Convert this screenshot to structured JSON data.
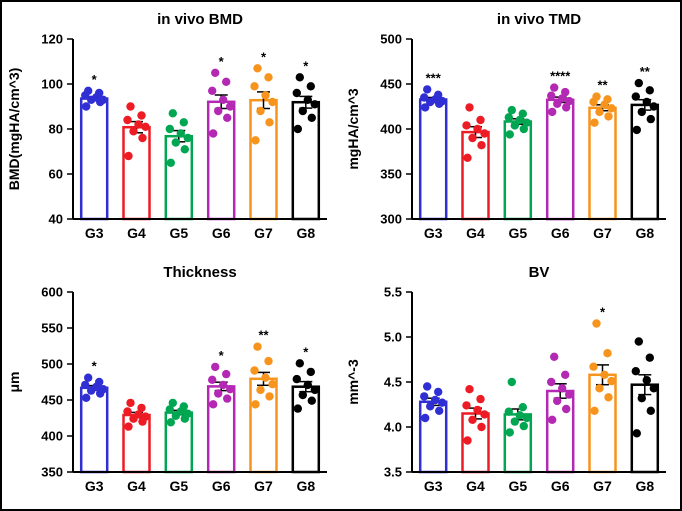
{
  "figure": {
    "background": "#ffffff",
    "border_color": "#000000"
  },
  "group_labels": [
    "G3",
    "G4",
    "G5",
    "G6",
    "G7",
    "G8"
  ],
  "group_colors": [
    "#2f2fd3",
    "#ed1c24",
    "#00a651",
    "#b429b4",
    "#f7941d",
    "#000000"
  ],
  "chart_data": [
    {
      "type": "bar",
      "title": "in vivo BMD",
      "ylabel": "BMD(mgHA/cm^3)",
      "ylim": [
        40,
        120
      ],
      "yticks": [
        40,
        60,
        80,
        100,
        120
      ],
      "ytick_labels": [
        "40",
        "60",
        "80",
        "100",
        "120"
      ],
      "categories": [
        "G3",
        "G4",
        "G5",
        "G6",
        "G7",
        "G8"
      ],
      "means": [
        93.5,
        80.8,
        76.8,
        92.1,
        92.8,
        91.9
      ],
      "sems": [
        0.8,
        2.5,
        2.5,
        3.0,
        3.7,
        2.6
      ],
      "significance": [
        "*",
        "",
        "",
        "*",
        "*",
        "*"
      ],
      "points": [
        [
          90,
          92,
          93,
          93,
          94,
          95,
          96,
          97
        ],
        [
          68,
          76,
          79,
          81,
          82,
          84,
          86,
          90
        ],
        [
          65,
          71,
          74,
          76,
          78,
          80,
          83,
          87
        ],
        [
          78,
          85,
          88,
          90,
          93,
          97,
          101,
          105
        ],
        [
          75,
          83,
          88,
          92,
          95,
          99,
          103,
          107
        ],
        [
          80,
          85,
          88,
          91,
          93,
          96,
          99,
          103
        ]
      ]
    },
    {
      "type": "bar",
      "title": "in vivo TMD",
      "ylabel": "mgHA/cm^3",
      "ylim": [
        300,
        500
      ],
      "yticks": [
        300,
        350,
        400,
        450,
        500
      ],
      "ytick_labels": [
        "300",
        "350",
        "400",
        "450",
        "500"
      ],
      "categories": [
        "G3",
        "G4",
        "G5",
        "G6",
        "G7",
        "G8"
      ],
      "means": [
        432.8,
        396.6,
        408.3,
        432.5,
        423.6,
        426.8
      ],
      "sems": [
        2.2,
        6.0,
        3.0,
        3.0,
        3.3,
        5.8
      ],
      "significance": [
        "***",
        "",
        "",
        "****",
        "**",
        "**"
      ],
      "points": [
        [
          424,
          428,
          430,
          431,
          433,
          435,
          438,
          444
        ],
        [
          368,
          382,
          390,
          395,
          400,
          404,
          410,
          424
        ],
        [
          394,
          400,
          404,
          407,
          410,
          413,
          417,
          421
        ],
        [
          419,
          424,
          428,
          431,
          434,
          437,
          441,
          446
        ],
        [
          407,
          414,
          419,
          423,
          427,
          430,
          433,
          436
        ],
        [
          399,
          411,
          419,
          425,
          430,
          436,
          443,
          451
        ]
      ]
    },
    {
      "type": "bar",
      "title": "Thickness",
      "ylabel": "μm",
      "ylim": [
        350,
        600
      ],
      "yticks": [
        350,
        400,
        450,
        500,
        550,
        600
      ],
      "ytick_labels": [
        "350",
        "400",
        "450",
        "500",
        "550",
        "600"
      ],
      "categories": [
        "G3",
        "G4",
        "G5",
        "G6",
        "G7",
        "G8"
      ],
      "means": [
        466.9,
        429.1,
        432.5,
        468.9,
        479.4,
        468.5
      ],
      "sems": [
        3.1,
        3.7,
        3.0,
        5.8,
        9.0,
        7.0
      ],
      "significance": [
        "*",
        "",
        "",
        "*",
        "**",
        "*"
      ],
      "points": [
        [
          453,
          459,
          463,
          465,
          468,
          471,
          475,
          481
        ],
        [
          413,
          420,
          424,
          427,
          430,
          434,
          439,
          446
        ],
        [
          419,
          424,
          428,
          431,
          434,
          437,
          441,
          446
        ],
        [
          444,
          452,
          459,
          465,
          471,
          478,
          486,
          496
        ],
        [
          444,
          455,
          464,
          472,
          481,
          491,
          504,
          524
        ],
        [
          438,
          449,
          457,
          464,
          471,
          479,
          489,
          501
        ]
      ]
    },
    {
      "type": "bar",
      "title": "BV",
      "ylabel": "mm^-3",
      "ylim": [
        3.5,
        5.5
      ],
      "yticks": [
        3.5,
        4.0,
        4.5,
        5.0,
        5.5
      ],
      "ytick_labels": [
        "3.5",
        "4.0",
        "4.5",
        "5.0",
        "5.5"
      ],
      "categories": [
        "G3",
        "G4",
        "G5",
        "G6",
        "G7",
        "G8"
      ],
      "means": [
        4.28,
        4.15,
        4.14,
        4.4,
        4.58,
        4.47
      ],
      "sems": [
        0.04,
        0.06,
        0.06,
        0.08,
        0.11,
        0.11
      ],
      "significance": [
        "",
        "",
        "",
        "",
        "*",
        ""
      ],
      "points": [
        [
          4.1,
          4.18,
          4.23,
          4.27,
          4.3,
          4.34,
          4.39,
          4.45
        ],
        [
          3.85,
          4.0,
          4.08,
          4.14,
          4.19,
          4.24,
          4.31,
          4.42
        ],
        [
          3.94,
          4.01,
          4.06,
          4.1,
          4.13,
          4.17,
          4.22,
          4.5
        ],
        [
          4.08,
          4.2,
          4.29,
          4.36,
          4.43,
          4.5,
          4.58,
          4.78
        ],
        [
          4.18,
          4.33,
          4.43,
          4.51,
          4.58,
          4.67,
          4.82,
          5.15
        ],
        [
          3.93,
          4.18,
          4.32,
          4.43,
          4.52,
          4.62,
          4.77,
          4.95
        ]
      ]
    }
  ]
}
